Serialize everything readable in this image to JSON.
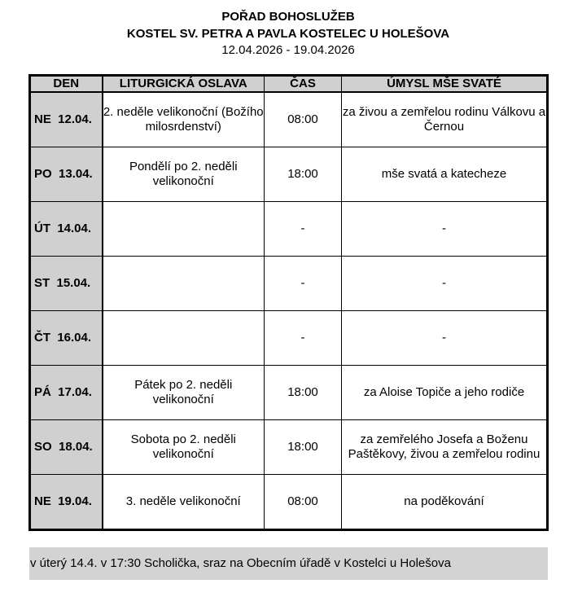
{
  "header": {
    "title": "POŘAD BOHOSLUŽEB",
    "subtitle": "KOSTEL SV. PETRA A PAVLA KOSTELEC U HOLEŠOVA",
    "date_range": "12.04.2026 - 19.04.2026"
  },
  "table": {
    "columns": [
      "DEN",
      "LITURGICKÁ OSLAVA",
      "ČAS",
      "ÚMYSL MŠE SVATÉ"
    ],
    "rows": [
      {
        "day": "NE  12.04.",
        "celebration": "2. neděle velikonoční (Božího milosrdenství)",
        "time": "08:00",
        "intention": "za živou a zemřelou rodinu Válkovu a Černou"
      },
      {
        "day": "PO  13.04.",
        "celebration": "Pondělí po 2. neděli velikonoční",
        "time": "18:00",
        "intention": "mše svatá a katecheze"
      },
      {
        "day": "ÚT  14.04.",
        "celebration": "",
        "time": "-",
        "intention": "-"
      },
      {
        "day": "ST  15.04.",
        "celebration": "",
        "time": "-",
        "intention": "-"
      },
      {
        "day": "ČT  16.04.",
        "celebration": "",
        "time": "-",
        "intention": "-"
      },
      {
        "day": "PÁ  17.04.",
        "celebration": "Pátek po 2. neděli velikonoční",
        "time": "18:00",
        "intention": "za Aloise Topiče a jeho rodiče"
      },
      {
        "day": "SO  18.04.",
        "celebration": "Sobota po 2. neděli velikonoční",
        "time": "18:00",
        "intention": "za zemřelého Josefa a Boženu Paštěkovy, živou a zemřelou rodinu"
      },
      {
        "day": "NE  19.04.",
        "celebration": "3. neděle velikonoční",
        "time": "08:00",
        "intention": "na poděkování"
      }
    ]
  },
  "footer": {
    "note": "v úterý 14.4. v 17:30 Scholička, sraz na Obecním úřadě v Kostelci u Holešova"
  },
  "colors": {
    "shade": "#d0d0d0"
  }
}
